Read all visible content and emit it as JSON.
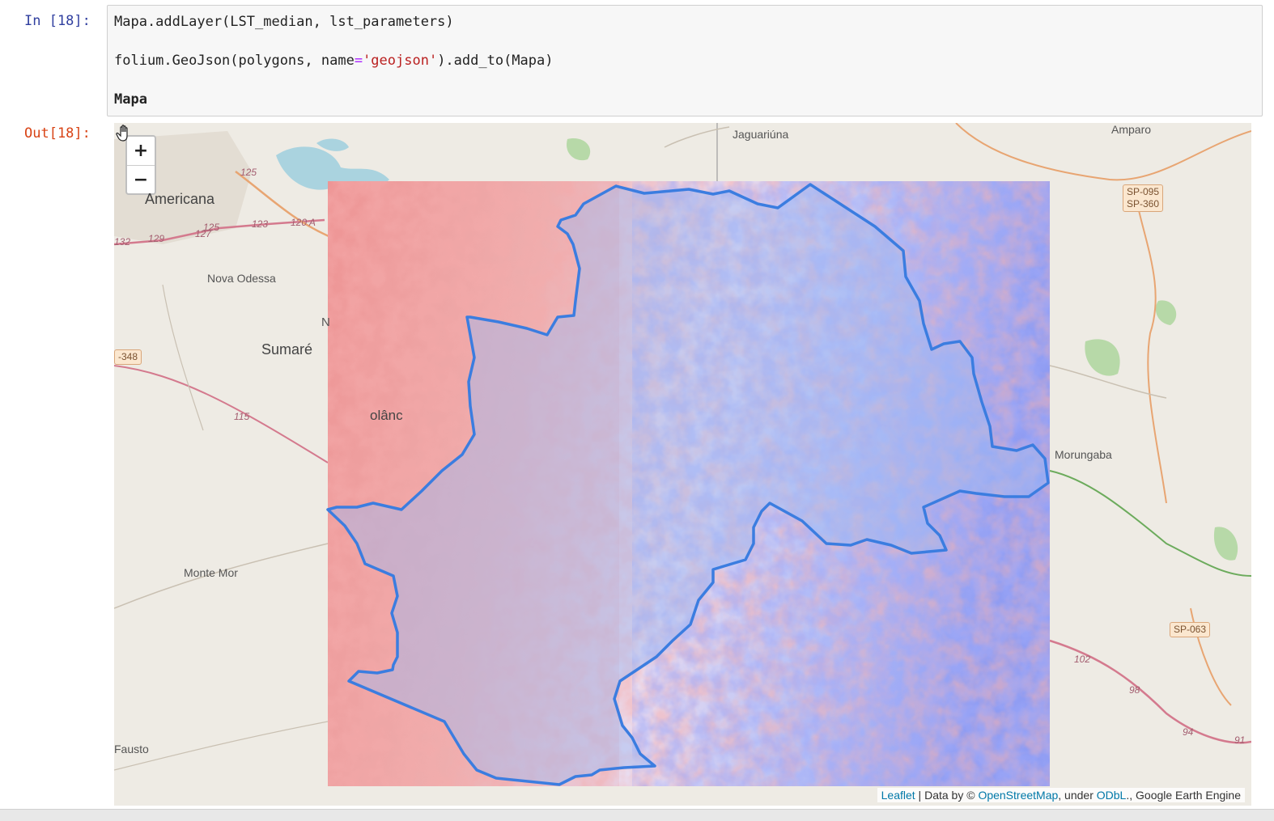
{
  "input_cell": {
    "prompt": "In [18]:",
    "lines": {
      "line1": "Mapa.addLayer(LST_median, lst_parameters)",
      "line2_pre": "folium.GeoJson(polygons, name",
      "line2_op": "=",
      "line2_str": "'geojson'",
      "line2_post": ").add_to(Mapa)",
      "line3": "Mapa"
    }
  },
  "output_cell": {
    "prompt": "Out[18]:"
  },
  "map": {
    "zoom_in_label": "+",
    "zoom_out_label": "−",
    "places": {
      "jaguariuna": "Jaguariúna",
      "amparo": "Amparo",
      "americana": "Americana",
      "nova_odessa": "Nova Odessa",
      "sumare": "Sumaré",
      "holambra": "olânc",
      "morungaba": "Morungaba",
      "monte_mor": "Monte Mor",
      "fausto": "Fausto",
      "partial_n": "N"
    },
    "road_numbers": {
      "r125a": "125",
      "r125b": "125",
      "r123": "123",
      "r120a": "120 A",
      "r132": "132",
      "r129": "129",
      "r127": "127",
      "r115": "115",
      "r102": "102",
      "r98": "98",
      "r94": "94",
      "r91": "91"
    },
    "badges": {
      "sp095": "SP-095",
      "sp360": "SP-360",
      "sp063": "SP-063",
      "b348": "-348"
    },
    "attribution": {
      "leaflet": "Leaflet",
      "sep1": " | Data by © ",
      "osm": "OpenStreetMap",
      "sep2": ", under ",
      "odbl": "ODbL",
      "sep3": "., Google Earth Engine"
    },
    "colors": {
      "hot": "#e05050",
      "cold": "#4a55ee",
      "polygon_stroke": "#3b7de0",
      "polygon_fill": "#8fb2f5"
    }
  }
}
